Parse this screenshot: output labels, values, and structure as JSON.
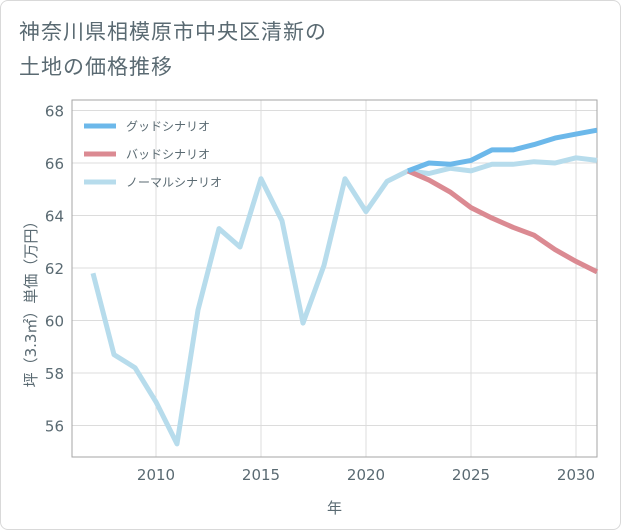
{
  "title": "神奈川県相模原市中央区清新の\n土地の価格推移",
  "chart_data": {
    "type": "line",
    "xlabel": "年",
    "ylabel": "坪（3.3㎡）単価（万円）",
    "xlim": [
      2006,
      2031
    ],
    "ylim": [
      54.8,
      68.4
    ],
    "xticks": [
      2010,
      2015,
      2020,
      2025,
      2030
    ],
    "yticks": [
      56,
      58,
      60,
      62,
      64,
      66,
      68
    ],
    "grid": true,
    "legend_position": "top-left",
    "series": [
      {
        "name": "グッドシナリオ",
        "color": "#6cb8ea",
        "x": [
          2022,
          2023,
          2024,
          2025,
          2026,
          2027,
          2028,
          2029,
          2030,
          2031
        ],
        "y": [
          65.7,
          66.0,
          65.95,
          66.1,
          66.5,
          66.5,
          66.7,
          66.95,
          67.1,
          67.25
        ]
      },
      {
        "name": "バッドシナリオ",
        "color": "#db8a92",
        "x": [
          2022,
          2023,
          2024,
          2025,
          2026,
          2027,
          2028,
          2029,
          2030,
          2031
        ],
        "y": [
          65.7,
          65.35,
          64.9,
          64.3,
          63.9,
          63.55,
          63.25,
          62.7,
          62.25,
          61.85
        ]
      },
      {
        "name": "ノーマルシナリオ",
        "color": "#b7dcec",
        "x": [
          2007,
          2008,
          2009,
          2010,
          2011,
          2012,
          2013,
          2014,
          2015,
          2016,
          2017,
          2018,
          2019,
          2020,
          2021,
          2022,
          2023,
          2024,
          2025,
          2026,
          2027,
          2028,
          2029,
          2030,
          2031
        ],
        "y": [
          61.8,
          58.7,
          58.2,
          56.9,
          55.3,
          60.4,
          63.5,
          62.8,
          65.4,
          63.8,
          59.9,
          62.1,
          65.4,
          64.15,
          65.3,
          65.7,
          65.6,
          65.8,
          65.7,
          65.95,
          65.95,
          66.05,
          66.0,
          66.2,
          66.1
        ]
      }
    ]
  }
}
